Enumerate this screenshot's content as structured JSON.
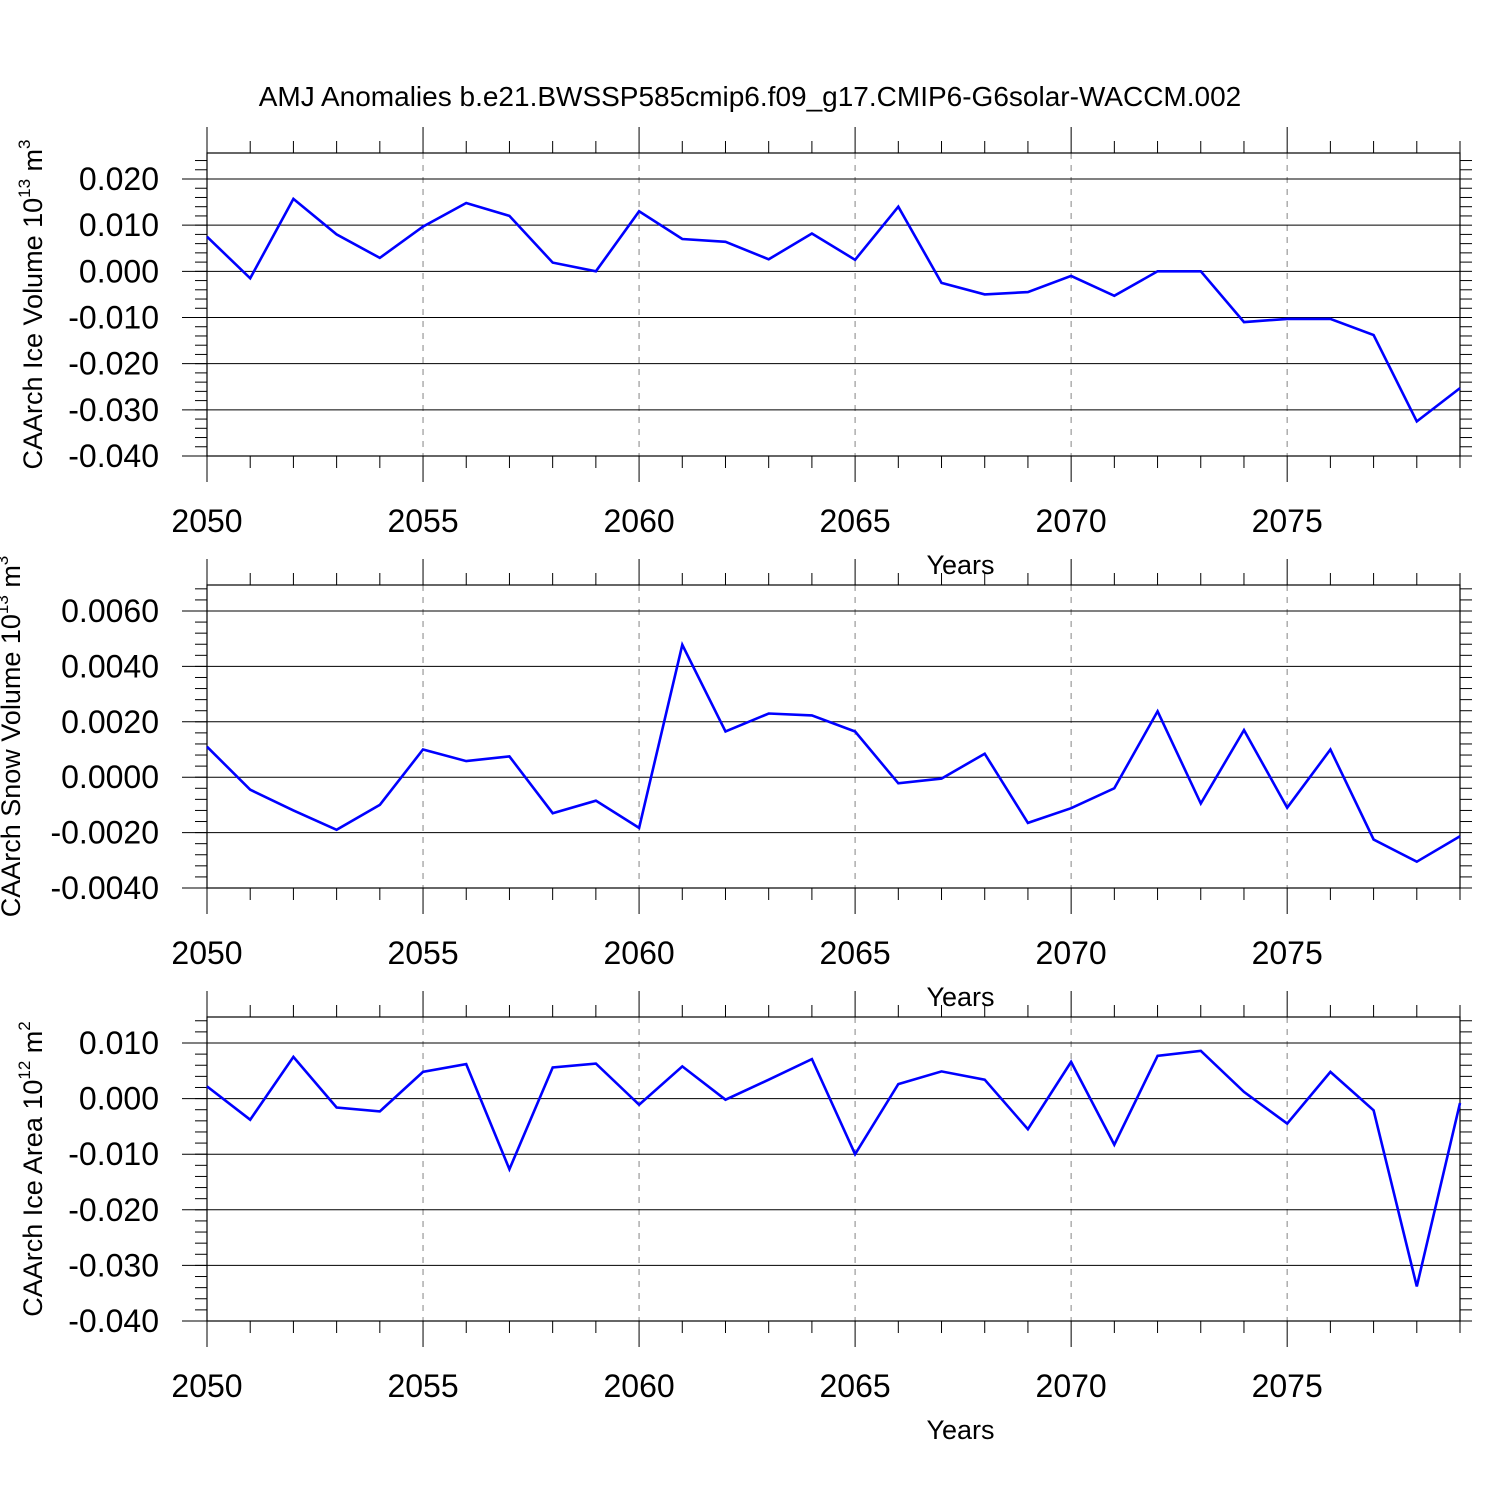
{
  "title": "AMJ Anomalies b.e21.BWSSP585cmip6.f09_g17.CMIP6-G6solar-WACCM.002",
  "line_color": "#0000ff",
  "grid_color": "#999999",
  "chart_data": [
    {
      "type": "line",
      "xlabel": "Years",
      "ylabel_main": "CAArch Ice Volume 10",
      "ylabel_exp": "13",
      "ylabel_unit": "m",
      "ylabel_unit_exp": "3",
      "xlim": [
        2050,
        2079
      ],
      "ylim": [
        -0.04,
        0.025
      ],
      "x_ticks": [
        2050,
        2055,
        2060,
        2065,
        2070,
        2075
      ],
      "x_tick_labels": [
        "2050",
        "2055",
        "2060",
        "2065",
        "2070",
        "2075"
      ],
      "y_ticks": [
        0.02,
        0.01,
        0.0,
        -0.01,
        -0.02,
        -0.03,
        -0.04
      ],
      "y_tick_labels": [
        "0.020",
        "0.010",
        "0.000",
        "-0.010",
        "-0.020",
        "-0.030",
        "-0.040"
      ],
      "y_minor_step": 0.002,
      "grid": "x-major-dashed",
      "series": [
        {
          "x": [
            2050,
            2051,
            2052,
            2053,
            2054,
            2055,
            2056,
            2057,
            2058,
            2059,
            2060,
            2061,
            2062,
            2063,
            2064,
            2065,
            2066,
            2067,
            2068,
            2069,
            2070,
            2071,
            2072,
            2073,
            2074,
            2075,
            2076,
            2077,
            2078,
            2079
          ],
          "values": [
            0.0075,
            -0.0015,
            0.0157,
            0.008,
            0.0029,
            0.0097,
            0.0148,
            0.012,
            0.0019,
            0.0,
            0.013,
            0.007,
            0.0064,
            0.0026,
            0.0082,
            0.0025,
            0.014,
            -0.0025,
            -0.005,
            -0.0045,
            -0.001,
            -0.0053,
            0.0,
            0.0,
            -0.011,
            -0.0103,
            -0.0103,
            -0.0138,
            -0.0325,
            -0.0253
          ]
        }
      ]
    },
    {
      "type": "line",
      "xlabel": "Years",
      "ylabel_main": "CAArch Snow Volume 10",
      "ylabel_exp": "13",
      "ylabel_unit": "m",
      "ylabel_unit_exp": "3",
      "xlim": [
        2050,
        2079
      ],
      "ylim": [
        -0.004,
        0.0069
      ],
      "x_ticks": [
        2050,
        2055,
        2060,
        2065,
        2070,
        2075
      ],
      "x_tick_labels": [
        "2050",
        "2055",
        "2060",
        "2065",
        "2070",
        "2075"
      ],
      "y_ticks": [
        0.006,
        0.004,
        0.002,
        0.0,
        -0.002,
        -0.004
      ],
      "y_tick_labels": [
        "0.0060",
        "0.0040",
        "0.0020",
        "0.0000",
        "-0.0020",
        "-0.0040"
      ],
      "y_minor_step": 0.0004,
      "grid": "x-major-dashed",
      "series": [
        {
          "x": [
            2050,
            2051,
            2052,
            2053,
            2054,
            2055,
            2056,
            2057,
            2058,
            2059,
            2060,
            2061,
            2062,
            2063,
            2064,
            2065,
            2066,
            2067,
            2068,
            2069,
            2070,
            2071,
            2072,
            2073,
            2074,
            2075,
            2076,
            2077,
            2078,
            2079
          ],
          "values": [
            0.0011,
            -0.00045,
            -0.0012,
            -0.0019,
            -0.001,
            0.001,
            0.00058,
            0.00075,
            -0.0013,
            -0.00085,
            -0.00183,
            0.00478,
            0.00165,
            0.0023,
            0.00223,
            0.00165,
            -0.00022,
            -5e-05,
            0.00085,
            -0.00165,
            -0.00112,
            -0.0004,
            0.00238,
            -0.00095,
            0.0017,
            -0.0011,
            0.001,
            -0.00225,
            -0.00305,
            -0.00213
          ]
        }
      ]
    },
    {
      "type": "line",
      "xlabel": "Years",
      "ylabel_main": "CAArch Ice Area 10",
      "ylabel_exp": "12",
      "ylabel_unit": "m",
      "ylabel_unit_exp": "2",
      "xlim": [
        2050,
        2079
      ],
      "ylim": [
        -0.04,
        0.0145
      ],
      "x_ticks": [
        2050,
        2055,
        2060,
        2065,
        2070,
        2075
      ],
      "x_tick_labels": [
        "2050",
        "2055",
        "2060",
        "2065",
        "2070",
        "2075"
      ],
      "y_ticks": [
        0.01,
        0.0,
        -0.01,
        -0.02,
        -0.03,
        -0.04
      ],
      "y_tick_labels": [
        "0.010",
        "0.000",
        "-0.010",
        "-0.020",
        "-0.030",
        "-0.040"
      ],
      "y_minor_step": 0.002,
      "grid": "x-major-dashed",
      "series": [
        {
          "x": [
            2050,
            2051,
            2052,
            2053,
            2054,
            2055,
            2056,
            2057,
            2058,
            2059,
            2060,
            2061,
            2062,
            2063,
            2064,
            2065,
            2066,
            2067,
            2068,
            2069,
            2070,
            2071,
            2072,
            2073,
            2074,
            2075,
            2076,
            2077,
            2078,
            2079
          ],
          "values": [
            0.0022,
            -0.0038,
            0.0075,
            -0.0016,
            -0.0023,
            0.0048,
            0.0062,
            -0.0127,
            0.0056,
            0.0063,
            -0.0011,
            0.0058,
            -0.0002,
            0.0034,
            0.0071,
            -0.01,
            0.0026,
            0.0049,
            0.0034,
            -0.0055,
            0.0066,
            -0.0083,
            0.0077,
            0.0086,
            0.0012,
            -0.0045,
            0.0048,
            -0.0021,
            -0.0338,
            -0.0008
          ]
        }
      ]
    }
  ]
}
